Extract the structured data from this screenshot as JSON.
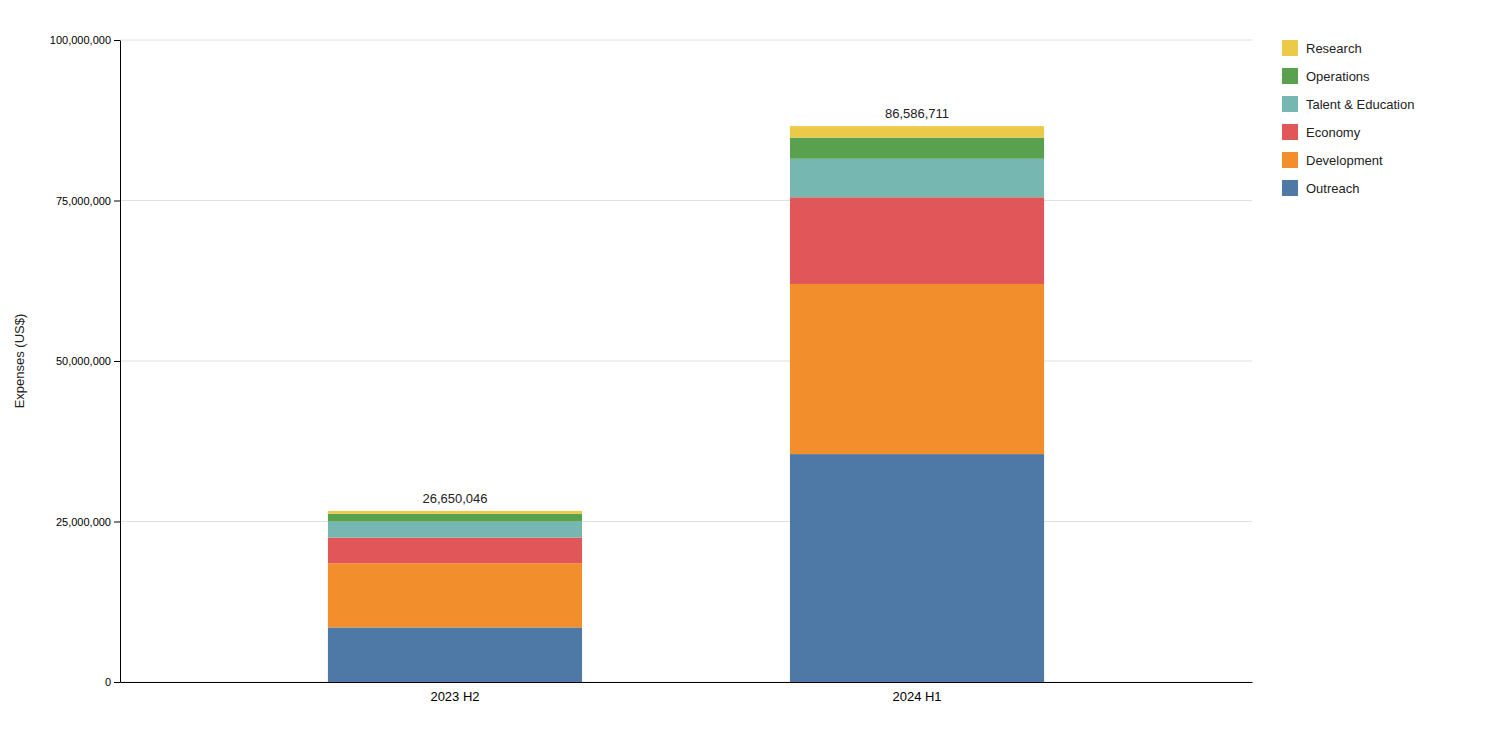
{
  "chart_data": {
    "type": "bar",
    "stacked": true,
    "categories": [
      "2023 H2",
      "2024 H1"
    ],
    "series": [
      {
        "name": "Outreach",
        "values": [
          8500000,
          35500000
        ]
      },
      {
        "name": "Development",
        "values": [
          10000000,
          26500000
        ]
      },
      {
        "name": "Economy",
        "values": [
          4000000,
          13500000
        ]
      },
      {
        "name": "Talent & Education",
        "values": [
          2500000,
          6000000
        ]
      },
      {
        "name": "Operations",
        "values": [
          1200000,
          3300000
        ]
      },
      {
        "name": "Research",
        "values": [
          450046,
          1786711
        ]
      }
    ],
    "totals": [
      26650046,
      86586711
    ],
    "total_labels": [
      "26,650,046",
      "86,586,711"
    ],
    "ylabel": "Expenses (US$)",
    "ylim": [
      0,
      100000000
    ],
    "yticks": [
      0,
      {
        "value": 25000000,
        "label": "25,000,000"
      },
      {
        "value": 50000000,
        "label": "50,000,000"
      },
      {
        "value": 75000000,
        "label": "75,000,000"
      },
      {
        "value": 100000000,
        "label": "100,000,000"
      }
    ],
    "grid": true,
    "legend": "upper right"
  }
}
